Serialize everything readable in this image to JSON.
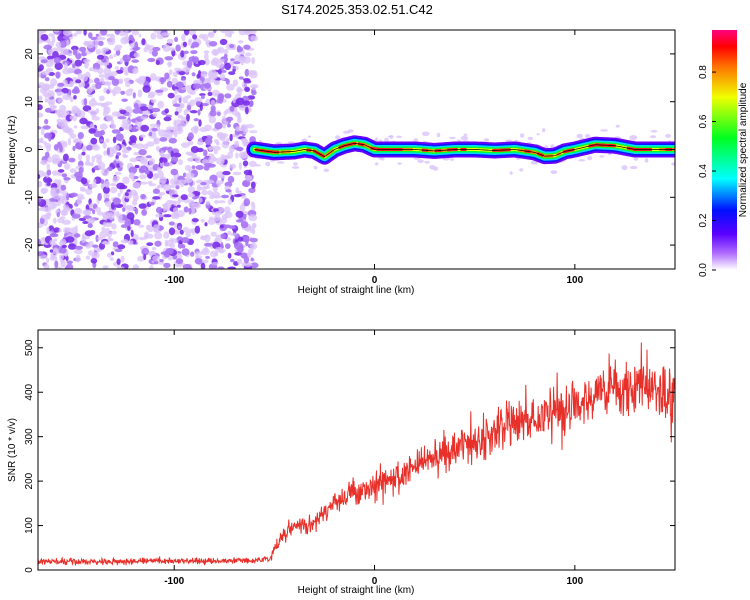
{
  "title": "S174.2025.353.02.51.C42",
  "colors": {
    "noise": "#9b5cf0",
    "noise_light": "#d9c2fa",
    "trace_line": "#e8302a",
    "axis": "#000000"
  },
  "chart_data": [
    {
      "type": "heatmap",
      "title": "S174.2025.353.02.51.C42",
      "xlabel": "Height of straight line (km)",
      "ylabel": "Frequency (Hz)",
      "xlim": [
        -168,
        150
      ],
      "ylim": [
        -25,
        25
      ],
      "xticks": [
        -100,
        0,
        100
      ],
      "xtick_labels": [
        "-100",
        "0",
        "100"
      ],
      "yticks": [
        -20,
        -10,
        0,
        10,
        20
      ],
      "ytick_labels": [
        "-20",
        "-10",
        "0",
        "10",
        "20"
      ],
      "noise_region_x": [
        -168,
        -60
      ],
      "ridge_x": [
        -60,
        -50,
        -40,
        -35,
        -30,
        -25,
        -20,
        -15,
        -10,
        -5,
        0,
        10,
        20,
        30,
        40,
        50,
        60,
        70,
        80,
        85,
        90,
        95,
        100,
        110,
        120,
        130,
        140,
        150
      ],
      "ridge_frequency": [
        0,
        -0.6,
        -0.4,
        0,
        -0.3,
        -1.5,
        0,
        0.8,
        1.3,
        1,
        0,
        0,
        0,
        -0.3,
        0,
        0,
        -0.2,
        0,
        -0.6,
        -1.4,
        -1.3,
        -0.4,
        0,
        1,
        0.8,
        0,
        0,
        0
      ],
      "colorbar": {
        "label": "Normalized spectral amplitude",
        "ticks": [
          0.0,
          0.2,
          0.4,
          0.6,
          0.8
        ],
        "tick_labels": [
          "0.0",
          "0.2",
          "0.4",
          "0.6",
          "0.8"
        ],
        "range": [
          0,
          0.97
        ],
        "colormap": [
          "#ffffff",
          "#6a00ff",
          "#0000ff",
          "#00ffff",
          "#00ff00",
          "#ffff00",
          "#ff8000",
          "#ff0000",
          "#ff0080"
        ]
      }
    },
    {
      "type": "line",
      "xlabel": "Height of straight line (km)",
      "ylabel": "SNR (10 * v/v)",
      "xlim": [
        -168,
        150
      ],
      "ylim": [
        0,
        540
      ],
      "xticks": [
        -100,
        0,
        100
      ],
      "xtick_labels": [
        "-100",
        "0",
        "100"
      ],
      "yticks": [
        0,
        100,
        200,
        300,
        400,
        500
      ],
      "ytick_labels": [
        "0",
        "100",
        "200",
        "300",
        "400",
        "500"
      ],
      "series": [
        {
          "name": "SNR",
          "x": [
            -168,
            -140,
            -110,
            -80,
            -60,
            -52,
            -50,
            -45,
            -40,
            -30,
            -20,
            -10,
            0,
            10,
            20,
            30,
            40,
            50,
            60,
            70,
            80,
            90,
            100,
            110,
            120,
            130,
            140,
            150
          ],
          "values": [
            20,
            19,
            20,
            20,
            21,
            25,
            45,
            80,
            100,
            110,
            150,
            175,
            190,
            210,
            230,
            255,
            275,
            290,
            305,
            330,
            340,
            355,
            370,
            390,
            410,
            410,
            400,
            390
          ]
        }
      ]
    }
  ]
}
